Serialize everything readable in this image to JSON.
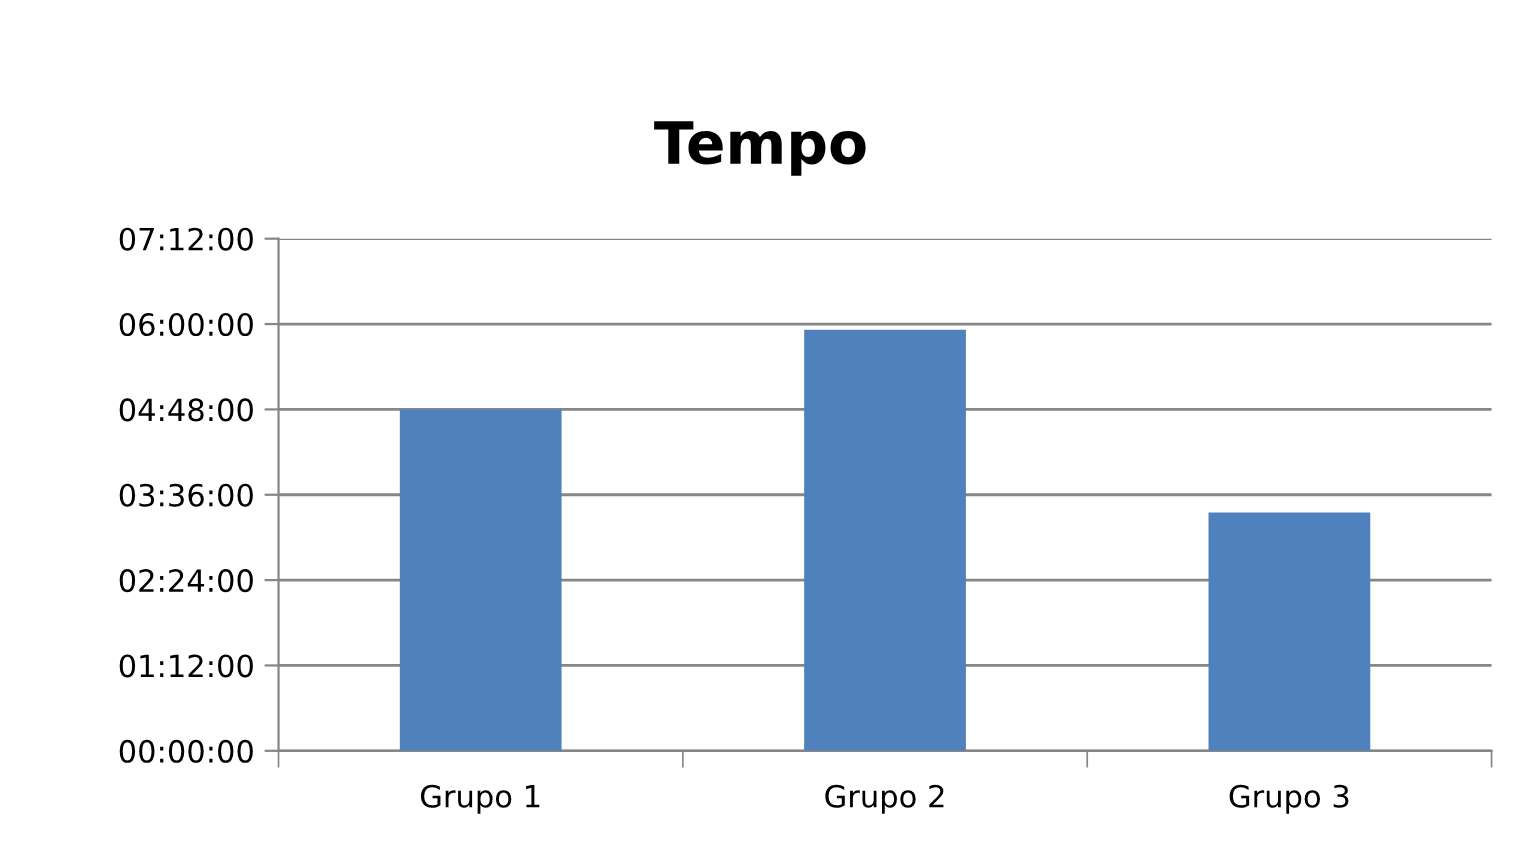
{
  "chart_data": {
    "type": "bar",
    "title": "Tempo",
    "categories": [
      "Grupo 1",
      "Grupo 2",
      "Grupo 3"
    ],
    "values": [
      4.8,
      5.92,
      3.35
    ],
    "color": "#4f81bd",
    "ylim": [
      0,
      7.2
    ],
    "yticks": [
      {
        "value": 0,
        "label": "00:00:00"
      },
      {
        "value": 1.2,
        "label": "01:12:00"
      },
      {
        "value": 2.4,
        "label": "02:24:00"
      },
      {
        "value": 3.6,
        "label": "03:36:00"
      },
      {
        "value": 4.8,
        "label": "04:48:00"
      },
      {
        "value": 6.0,
        "label": "06:00:00"
      },
      {
        "value": 7.2,
        "label": "07:12:00"
      }
    ],
    "grid": "y",
    "legend": false
  }
}
